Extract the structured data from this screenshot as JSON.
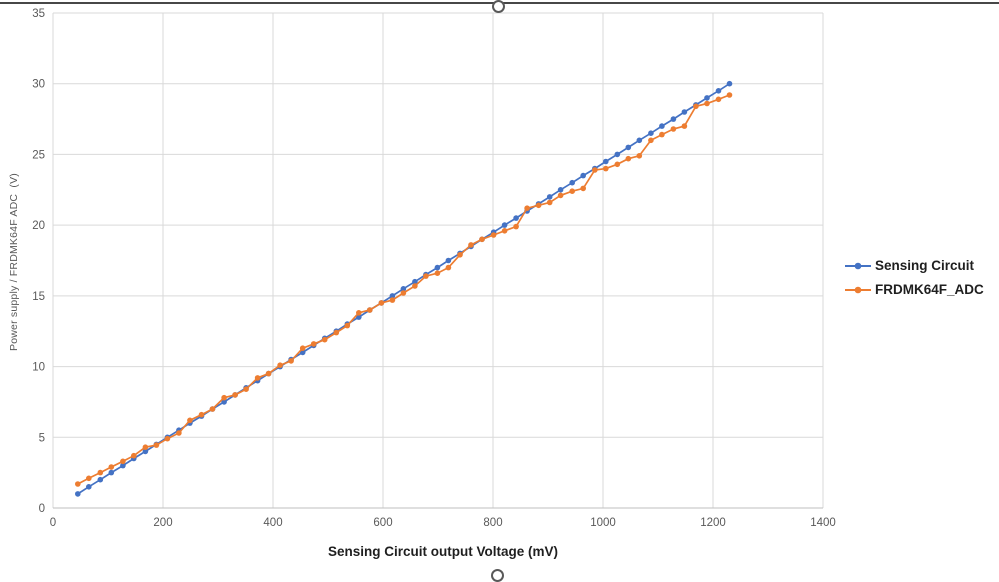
{
  "selection": {
    "border_color": "#474747",
    "handle_border_color": "#595959",
    "icons": {
      "top": "resize-handle-icon",
      "bottom": "resize-handle-icon"
    }
  },
  "chart_data": {
    "type": "line",
    "title": "",
    "xlabel": "Sensing Circuit output Voltage (mV)",
    "ylabel": "Power supply / FRDMK64F ADC  (V)",
    "xlim": [
      0,
      1400
    ],
    "ylim": [
      0,
      35
    ],
    "xticks": [
      0,
      200,
      400,
      600,
      800,
      1000,
      1200,
      1400
    ],
    "yticks": [
      0,
      5,
      10,
      15,
      20,
      25,
      30,
      35
    ],
    "grid": true,
    "grid_color": "#D9D9D9",
    "axis_line_color": "#BFBFBF",
    "axis_text_color": "#595959",
    "legend_position": "right",
    "x": [
      45,
      65,
      86,
      106,
      127,
      147,
      168,
      188,
      208,
      229,
      249,
      270,
      290,
      311,
      331,
      351,
      372,
      392,
      413,
      433,
      454,
      474,
      494,
      515,
      535,
      556,
      576,
      597,
      617,
      637,
      658,
      678,
      699,
      719,
      740,
      760,
      780,
      801,
      821,
      842,
      862,
      883,
      903,
      923,
      944,
      964,
      985,
      1005,
      1026,
      1046,
      1066,
      1087,
      1107,
      1128,
      1148,
      1169,
      1189,
      1210,
      1230
    ],
    "series": [
      {
        "name": "Sensing Circuit",
        "color": "#4472C4",
        "values": [
          1.0,
          1.5,
          2.0,
          2.5,
          3.0,
          3.5,
          4.0,
          4.5,
          5.0,
          5.5,
          6.0,
          6.5,
          7.0,
          7.5,
          8.0,
          8.5,
          9.0,
          9.5,
          10.0,
          10.5,
          11.0,
          11.5,
          12.0,
          12.5,
          13.0,
          13.5,
          14.0,
          14.5,
          15.0,
          15.5,
          16.0,
          16.5,
          17.0,
          17.5,
          18.0,
          18.5,
          19.0,
          19.5,
          20.0,
          20.5,
          21.0,
          21.5,
          22.0,
          22.5,
          23.0,
          23.5,
          24.0,
          24.5,
          25.0,
          25.5,
          26.0,
          26.5,
          27.0,
          27.5,
          28.0,
          28.5,
          29.0,
          29.5,
          30.0
        ]
      },
      {
        "name": "FRDMK64F_ADC",
        "color": "#ED7D31",
        "values": [
          1.7,
          2.1,
          2.5,
          2.9,
          3.3,
          3.7,
          4.3,
          4.45,
          4.9,
          5.3,
          6.2,
          6.6,
          7.0,
          7.8,
          8.0,
          8.4,
          9.2,
          9.5,
          10.1,
          10.4,
          11.3,
          11.6,
          11.9,
          12.4,
          12.9,
          13.8,
          14.0,
          14.5,
          14.7,
          15.2,
          15.7,
          16.4,
          16.6,
          17.0,
          17.9,
          18.6,
          19.0,
          19.3,
          19.6,
          19.9,
          21.2,
          21.4,
          21.6,
          22.1,
          22.4,
          22.6,
          23.9,
          24.0,
          24.3,
          24.7,
          24.9,
          26.0,
          26.4,
          26.8,
          27.0,
          28.4,
          28.6,
          28.9,
          29.2
        ]
      }
    ]
  }
}
